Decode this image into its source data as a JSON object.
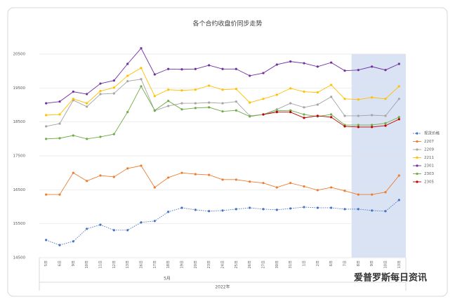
{
  "chart_data": {
    "type": "line",
    "title": "各个合约收盘价同步走势",
    "categories": [
      "5日",
      "6日",
      "9日",
      "10日",
      "11日",
      "12日",
      "13日",
      "16日",
      "17日",
      "18日",
      "19日",
      "20日",
      "23日",
      "24日",
      "25日",
      "26日",
      "27日",
      "30日",
      "31日",
      "1日",
      "2日",
      "6日",
      "7日",
      "8日",
      "9日",
      "10日",
      "13日"
    ],
    "month_label": "5月",
    "year_label": "2022年",
    "ylim": [
      14500,
      20500
    ],
    "yticks": [
      14500,
      15500,
      16500,
      17500,
      18500,
      19500,
      20500
    ],
    "grid": true,
    "highlight": {
      "from": 23,
      "to": 26,
      "color": "#dae3f3"
    },
    "legend": "right",
    "series": [
      {
        "name": "现货价格",
        "color": "#4472c4",
        "line_style": "dotted",
        "values": [
          15020,
          14870,
          14980,
          15350,
          15470,
          15310,
          15310,
          15540,
          15580,
          15850,
          15970,
          15910,
          15870,
          15890,
          15930,
          15970,
          15930,
          15910,
          15950,
          15990,
          15970,
          15970,
          15930,
          15930,
          15890,
          15870,
          16200
        ]
      },
      {
        "name": "2207",
        "color": "#ed7d31",
        "line_style": "solid",
        "values": [
          16360,
          16360,
          17000,
          16760,
          16920,
          16880,
          17130,
          17210,
          16570,
          16860,
          17000,
          16960,
          16940,
          16800,
          16800,
          16740,
          16700,
          16570,
          16700,
          16600,
          16490,
          16570,
          16470,
          16360,
          16360,
          16430,
          16920
        ]
      },
      {
        "name": "2209",
        "color": "#a5a5a5",
        "line_style": "solid",
        "values": [
          18370,
          18450,
          19140,
          18950,
          19320,
          19340,
          19700,
          19760,
          18830,
          18970,
          19050,
          19050,
          19070,
          19050,
          19100,
          18680,
          18720,
          18870,
          19050,
          18930,
          19010,
          19240,
          18680,
          18680,
          18700,
          18680,
          19180
        ]
      },
      {
        "name": "2211",
        "color": "#ffc000",
        "line_style": "solid",
        "values": [
          18700,
          18720,
          19180,
          19050,
          19410,
          19510,
          19860,
          20090,
          19260,
          19450,
          19430,
          19450,
          19570,
          19450,
          19470,
          19070,
          19180,
          19300,
          19490,
          19390,
          19370,
          19590,
          19180,
          19160,
          19220,
          19180,
          19550
        ]
      },
      {
        "name": "2301",
        "color": "#7030a0",
        "line_style": "solid",
        "values": [
          19050,
          19100,
          19390,
          19320,
          19630,
          19720,
          20210,
          20670,
          19900,
          20060,
          20050,
          20060,
          20170,
          20060,
          20060,
          19860,
          19940,
          20190,
          20280,
          20230,
          20130,
          20250,
          20010,
          20030,
          20130,
          20030,
          20210
        ]
      },
      {
        "name": "2303",
        "color": "#70ad47",
        "line_style": "solid",
        "values": [
          18000,
          18020,
          18100,
          18000,
          18060,
          18140,
          18790,
          19550,
          18840,
          19120,
          18870,
          18910,
          18930,
          18810,
          18840,
          18660,
          18720,
          18830,
          18840,
          18720,
          18660,
          18720,
          18410,
          18410,
          18410,
          18460,
          18640
        ]
      },
      {
        "name": "2305",
        "color": "#c00000",
        "line_style": "solid",
        "values": [
          null,
          null,
          null,
          null,
          null,
          null,
          null,
          null,
          null,
          null,
          null,
          null,
          null,
          null,
          null,
          null,
          18720,
          18790,
          18790,
          18620,
          18680,
          18640,
          18370,
          18350,
          18350,
          18390,
          18580
        ]
      }
    ],
    "watermark": "爱普罗斯每日资讯"
  }
}
